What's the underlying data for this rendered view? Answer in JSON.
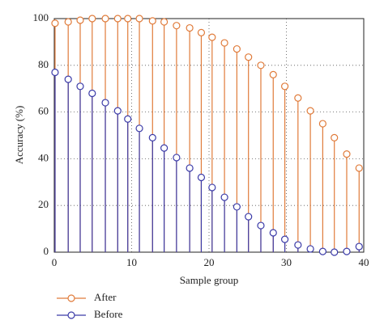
{
  "chart_data": {
    "type": "stem",
    "x_label": "Sample group",
    "y_label": "Accuracy (%)",
    "x": [
      0.1,
      1.8,
      3.35,
      4.9,
      6.6,
      8.2,
      9.5,
      11,
      12.7,
      14.2,
      15.8,
      17.5,
      19,
      20.4,
      22,
      23.6,
      25.1,
      26.7,
      28.3,
      29.8,
      31.5,
      33.1,
      34.7,
      36.2,
      37.8,
      39.4
    ],
    "series": [
      {
        "name": "After",
        "color": "#e07b3a",
        "values": [
          98,
          98.6,
          99.3,
          100,
          100,
          100,
          100,
          100,
          99,
          98.6,
          97,
          96,
          94,
          92,
          89.6,
          87,
          83.5,
          80,
          76,
          71,
          66,
          60.5,
          55,
          49,
          42,
          36
        ]
      },
      {
        "name": "Before",
        "color": "#3b3ba8",
        "values": [
          77,
          74,
          71,
          68,
          64,
          60.5,
          57,
          53,
          49,
          44.6,
          40.5,
          36,
          32,
          27.7,
          23.5,
          19.4,
          15.2,
          11.4,
          8.3,
          5.5,
          3.1,
          1.4,
          0.3,
          0,
          0.3,
          2.4
        ]
      }
    ],
    "xlim": [
      0,
      40
    ],
    "xticks": [
      0,
      10,
      20,
      30,
      40
    ],
    "ylim": [
      0,
      100
    ],
    "yticks": [
      0,
      20,
      40,
      60,
      80,
      100
    ],
    "grid": true,
    "legend": "below"
  }
}
